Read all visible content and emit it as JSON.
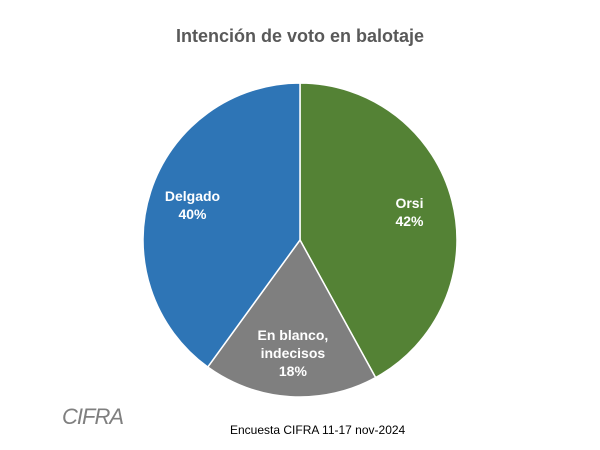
{
  "chart_data": {
    "type": "pie",
    "title": "Intención de voto en balotaje",
    "categories": [
      "Orsi",
      "En blanco, indecisos",
      "Delgado"
    ],
    "values": [
      42,
      18,
      40
    ],
    "value_labels": [
      "42%",
      "18%",
      "40%"
    ],
    "colors": [
      "#548235",
      "#7f7f7f",
      "#2e75b6"
    ],
    "source": "Encuesta CIFRA  11-17 nov-2024",
    "logo": "CIFRA"
  }
}
